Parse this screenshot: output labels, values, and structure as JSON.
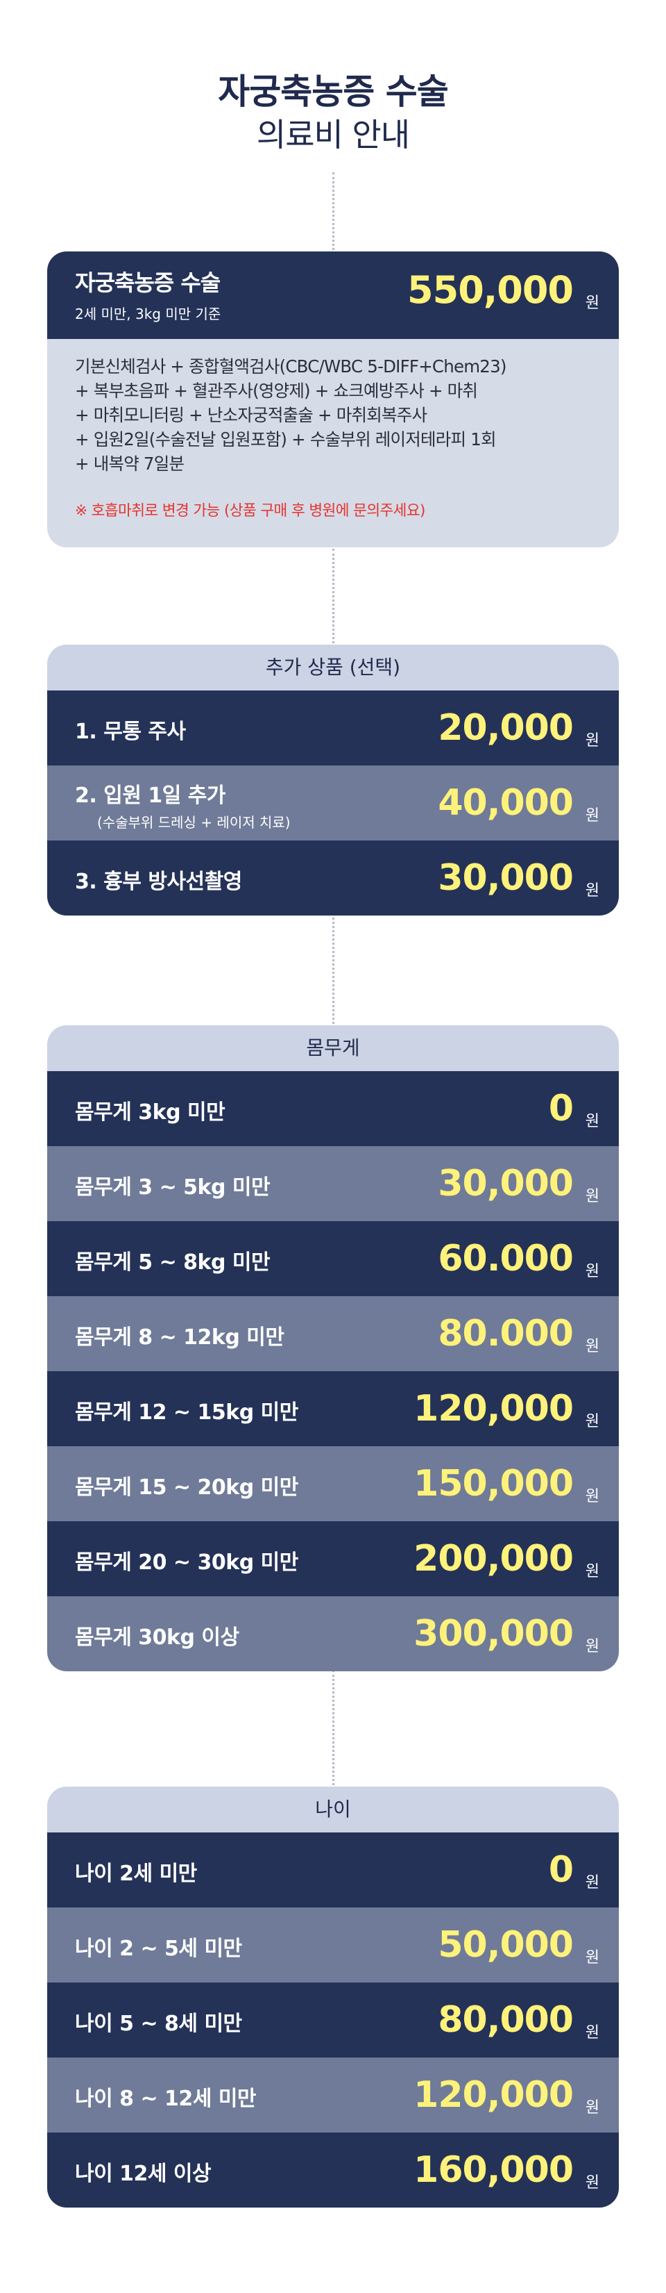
{
  "header": {
    "title": "자궁축농증 수술",
    "subtitle": "의료비 안내"
  },
  "main": {
    "name": "자궁축농증 수술",
    "condition": "2세 미만, 3kg 미만 기준",
    "price": "550,000",
    "won": "원",
    "includes": [
      "기본신체검사 + 종합혈액검사(CBC/WBC 5-DIFF+Chem23)",
      "+ 복부초음파 + 혈관주사(영양제) + 쇼크예방주사 + 마취",
      "+ 마취모니터링 + 난소자궁적출술 + 마취회복주사",
      "+ 입원2일(수술전날 입원포함) + 수술부위 레이저테라피 1회",
      "+ 내복약 7일분"
    ],
    "note": "※ 호흡마취로 변경 가능 (상품 구매 후 병원에 문의주세요)"
  },
  "addons": {
    "title": "추가 상품 (선택)",
    "rows": [
      {
        "label": "1. 무통 주사",
        "sub": "",
        "price": "20,000",
        "won": "원"
      },
      {
        "label": "2. 입원 1일 추가",
        "sub": "(수술부위 드레싱 + 레이저 치료)",
        "price": "40,000",
        "won": "원"
      },
      {
        "label": "3. 흉부 방사선촬영",
        "sub": "",
        "price": "30,000",
        "won": "원"
      }
    ]
  },
  "weight": {
    "title": "몸무게",
    "rows": [
      {
        "label": "몸무게 3kg 미만",
        "price": "0",
        "won": "원"
      },
      {
        "label": "몸무게 3 ~ 5kg 미만",
        "price": "30,000",
        "won": "원"
      },
      {
        "label": "몸무게 5 ~ 8kg 미만",
        "price": "60.000",
        "won": "원"
      },
      {
        "label": "몸무게 8 ~ 12kg 미만",
        "price": "80.000",
        "won": "원"
      },
      {
        "label": "몸무게 12 ~ 15kg 미만",
        "price": "120,000",
        "won": "원"
      },
      {
        "label": "몸무게 15 ~ 20kg 미만",
        "price": "150,000",
        "won": "원"
      },
      {
        "label": "몸무게 20 ~ 30kg 미만",
        "price": "200,000",
        "won": "원"
      },
      {
        "label": "몸무게 30kg 이상",
        "price": "300,000",
        "won": "원"
      }
    ]
  },
  "age": {
    "title": "나이",
    "rows": [
      {
        "label": "나이 2세 미만",
        "price": "0",
        "won": "원"
      },
      {
        "label": "나이 2 ~ 5세 미만",
        "price": "50,000",
        "won": "원"
      },
      {
        "label": "나이 5 ~ 8세 미만",
        "price": "80,000",
        "won": "원"
      },
      {
        "label": "나이 8 ~ 12세 미만",
        "price": "120,000",
        "won": "원"
      },
      {
        "label": "나이 12세 이상",
        "price": "160,000",
        "won": "원"
      }
    ]
  }
}
